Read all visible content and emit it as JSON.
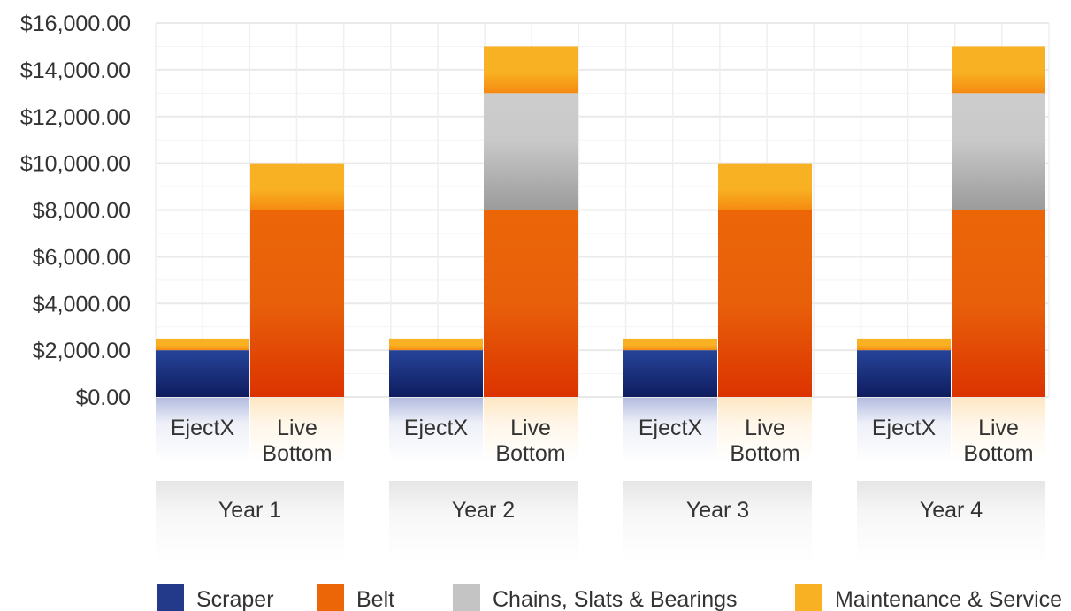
{
  "chart_data": {
    "type": "bar",
    "stacked": true,
    "groups": [
      "Year 1",
      "Year 2",
      "Year 3",
      "Year 4"
    ],
    "categories": [
      "EjectX",
      "Live Bottom"
    ],
    "category_display": [
      [
        "EjectX"
      ],
      [
        "Live",
        "Bottom"
      ]
    ],
    "series": [
      {
        "name": "Scraper",
        "color": "#233a8b",
        "values": [
          [
            2000,
            0
          ],
          [
            2000,
            0
          ],
          [
            2000,
            0
          ],
          [
            2000,
            0
          ]
        ]
      },
      {
        "name": "Belt",
        "color": "#ec6608",
        "values": [
          [
            0,
            8000
          ],
          [
            0,
            8000
          ],
          [
            0,
            8000
          ],
          [
            0,
            8000
          ]
        ]
      },
      {
        "name": "Chains, Slats & Bearings",
        "color": "#c4c4c4",
        "values": [
          [
            0,
            0
          ],
          [
            0,
            5000
          ],
          [
            0,
            0
          ],
          [
            0,
            5000
          ]
        ]
      },
      {
        "name": "Maintenance & Service",
        "color": "#f8b122",
        "values": [
          [
            500,
            2000
          ],
          [
            500,
            2000
          ],
          [
            500,
            2000
          ],
          [
            500,
            2000
          ]
        ]
      }
    ],
    "ylim": [
      0,
      16000
    ],
    "yticks": [
      0,
      2000,
      4000,
      6000,
      8000,
      10000,
      12000,
      14000,
      16000
    ],
    "ytick_labels": [
      "$0.00",
      "$2,000.00",
      "$4,000.00",
      "$6,000.00",
      "$8,000.00",
      "$10,000.00",
      "$12,000.00",
      "$14,000.00",
      "$16,000.00"
    ],
    "grid": true,
    "legend_position": "bottom",
    "title": "",
    "xlabel": "",
    "ylabel": ""
  }
}
